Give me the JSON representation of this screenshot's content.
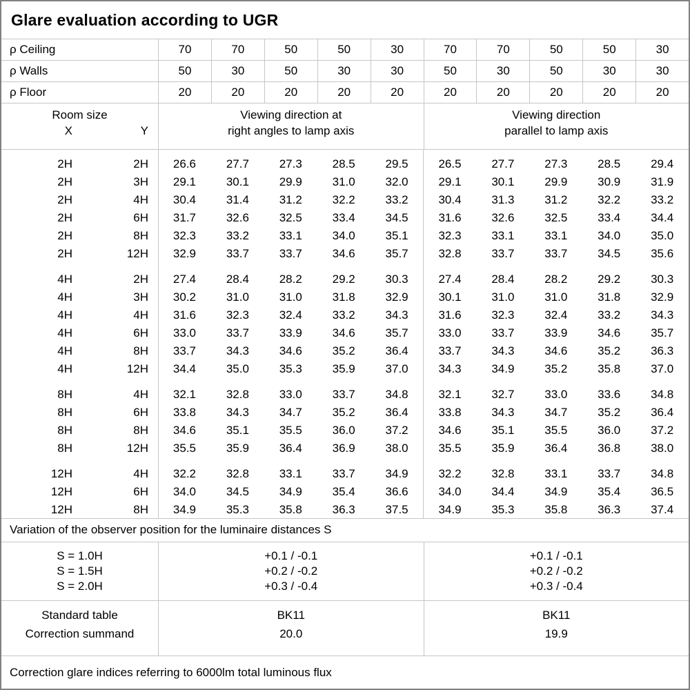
{
  "title": "Glare evaluation according to UGR",
  "reflectances": {
    "rows": [
      {
        "label": "ρ Ceiling",
        "values": [
          "70",
          "70",
          "50",
          "50",
          "30",
          "70",
          "70",
          "50",
          "50",
          "30"
        ]
      },
      {
        "label": "ρ Walls",
        "values": [
          "50",
          "30",
          "50",
          "30",
          "30",
          "50",
          "30",
          "50",
          "30",
          "30"
        ]
      },
      {
        "label": "ρ Floor",
        "values": [
          "20",
          "20",
          "20",
          "20",
          "20",
          "20",
          "20",
          "20",
          "20",
          "20"
        ]
      }
    ]
  },
  "room_header": {
    "room_size": "Room size",
    "x": "X",
    "y": "Y",
    "group1": [
      "Viewing direction at",
      "right angles to lamp axis"
    ],
    "group2": [
      "Viewing direction",
      "parallel to lamp axis"
    ]
  },
  "ugr_blocks": [
    {
      "rows": [
        {
          "x": "2H",
          "y": "2H",
          "right_angles": [
            "26.6",
            "27.7",
            "27.3",
            "28.5",
            "29.5"
          ],
          "parallel": [
            "26.5",
            "27.7",
            "27.3",
            "28.5",
            "29.4"
          ]
        },
        {
          "x": "2H",
          "y": "3H",
          "right_angles": [
            "29.1",
            "30.1",
            "29.9",
            "31.0",
            "32.0"
          ],
          "parallel": [
            "29.1",
            "30.1",
            "29.9",
            "30.9",
            "31.9"
          ]
        },
        {
          "x": "2H",
          "y": "4H",
          "right_angles": [
            "30.4",
            "31.4",
            "31.2",
            "32.2",
            "33.2"
          ],
          "parallel": [
            "30.4",
            "31.3",
            "31.2",
            "32.2",
            "33.2"
          ]
        },
        {
          "x": "2H",
          "y": "6H",
          "right_angles": [
            "31.7",
            "32.6",
            "32.5",
            "33.4",
            "34.5"
          ],
          "parallel": [
            "31.6",
            "32.6",
            "32.5",
            "33.4",
            "34.4"
          ]
        },
        {
          "x": "2H",
          "y": "8H",
          "right_angles": [
            "32.3",
            "33.2",
            "33.1",
            "34.0",
            "35.1"
          ],
          "parallel": [
            "32.3",
            "33.1",
            "33.1",
            "34.0",
            "35.0"
          ]
        },
        {
          "x": "2H",
          "y": "12H",
          "right_angles": [
            "32.9",
            "33.7",
            "33.7",
            "34.6",
            "35.7"
          ],
          "parallel": [
            "32.8",
            "33.7",
            "33.7",
            "34.5",
            "35.6"
          ]
        }
      ]
    },
    {
      "rows": [
        {
          "x": "4H",
          "y": "2H",
          "right_angles": [
            "27.4",
            "28.4",
            "28.2",
            "29.2",
            "30.3"
          ],
          "parallel": [
            "27.4",
            "28.4",
            "28.2",
            "29.2",
            "30.3"
          ]
        },
        {
          "x": "4H",
          "y": "3H",
          "right_angles": [
            "30.2",
            "31.0",
            "31.0",
            "31.8",
            "32.9"
          ],
          "parallel": [
            "30.1",
            "31.0",
            "31.0",
            "31.8",
            "32.9"
          ]
        },
        {
          "x": "4H",
          "y": "4H",
          "right_angles": [
            "31.6",
            "32.3",
            "32.4",
            "33.2",
            "34.3"
          ],
          "parallel": [
            "31.6",
            "32.3",
            "32.4",
            "33.2",
            "34.3"
          ]
        },
        {
          "x": "4H",
          "y": "6H",
          "right_angles": [
            "33.0",
            "33.7",
            "33.9",
            "34.6",
            "35.7"
          ],
          "parallel": [
            "33.0",
            "33.7",
            "33.9",
            "34.6",
            "35.7"
          ]
        },
        {
          "x": "4H",
          "y": "8H",
          "right_angles": [
            "33.7",
            "34.3",
            "34.6",
            "35.2",
            "36.4"
          ],
          "parallel": [
            "33.7",
            "34.3",
            "34.6",
            "35.2",
            "36.3"
          ]
        },
        {
          "x": "4H",
          "y": "12H",
          "right_angles": [
            "34.4",
            "35.0",
            "35.3",
            "35.9",
            "37.0"
          ],
          "parallel": [
            "34.3",
            "34.9",
            "35.2",
            "35.8",
            "37.0"
          ]
        }
      ]
    },
    {
      "rows": [
        {
          "x": "8H",
          "y": "4H",
          "right_angles": [
            "32.1",
            "32.8",
            "33.0",
            "33.7",
            "34.8"
          ],
          "parallel": [
            "32.1",
            "32.7",
            "33.0",
            "33.6",
            "34.8"
          ]
        },
        {
          "x": "8H",
          "y": "6H",
          "right_angles": [
            "33.8",
            "34.3",
            "34.7",
            "35.2",
            "36.4"
          ],
          "parallel": [
            "33.8",
            "34.3",
            "34.7",
            "35.2",
            "36.4"
          ]
        },
        {
          "x": "8H",
          "y": "8H",
          "right_angles": [
            "34.6",
            "35.1",
            "35.5",
            "36.0",
            "37.2"
          ],
          "parallel": [
            "34.6",
            "35.1",
            "35.5",
            "36.0",
            "37.2"
          ]
        },
        {
          "x": "8H",
          "y": "12H",
          "right_angles": [
            "35.5",
            "35.9",
            "36.4",
            "36.9",
            "38.0"
          ],
          "parallel": [
            "35.5",
            "35.9",
            "36.4",
            "36.8",
            "38.0"
          ]
        }
      ]
    },
    {
      "rows": [
        {
          "x": "12H",
          "y": "4H",
          "right_angles": [
            "32.2",
            "32.8",
            "33.1",
            "33.7",
            "34.9"
          ],
          "parallel": [
            "32.2",
            "32.8",
            "33.1",
            "33.7",
            "34.8"
          ]
        },
        {
          "x": "12H",
          "y": "6H",
          "right_angles": [
            "34.0",
            "34.5",
            "34.9",
            "35.4",
            "36.6"
          ],
          "parallel": [
            "34.0",
            "34.4",
            "34.9",
            "35.4",
            "36.5"
          ]
        },
        {
          "x": "12H",
          "y": "8H",
          "right_angles": [
            "34.9",
            "35.3",
            "35.8",
            "36.3",
            "37.5"
          ],
          "parallel": [
            "34.9",
            "35.3",
            "35.8",
            "36.3",
            "37.4"
          ]
        }
      ]
    }
  ],
  "variation_note": "Variation of the observer position for the luminaire distances S",
  "s_variation": {
    "rows": [
      {
        "label": "S = 1.0H",
        "right_angles": "+0.1 / -0.1",
        "parallel": "+0.1 / -0.1"
      },
      {
        "label": "S = 1.5H",
        "right_angles": "+0.2 / -0.2",
        "parallel": "+0.2 / -0.2"
      },
      {
        "label": "S = 2.0H",
        "right_angles": "+0.3 / -0.4",
        "parallel": "+0.3 / -0.4"
      }
    ]
  },
  "summary": {
    "rows": [
      {
        "label": "Standard table",
        "right_angles": "BK11",
        "parallel": "BK11"
      },
      {
        "label": "Correction summand",
        "right_angles": "20.0",
        "parallel": "19.9"
      }
    ]
  },
  "footer_note": "Correction glare indices referring to 6000lm total luminous flux",
  "colors": {
    "grid_line": "#c6c6c6",
    "outer_border": "#808080",
    "text": "#000000",
    "background": "#ffffff"
  }
}
